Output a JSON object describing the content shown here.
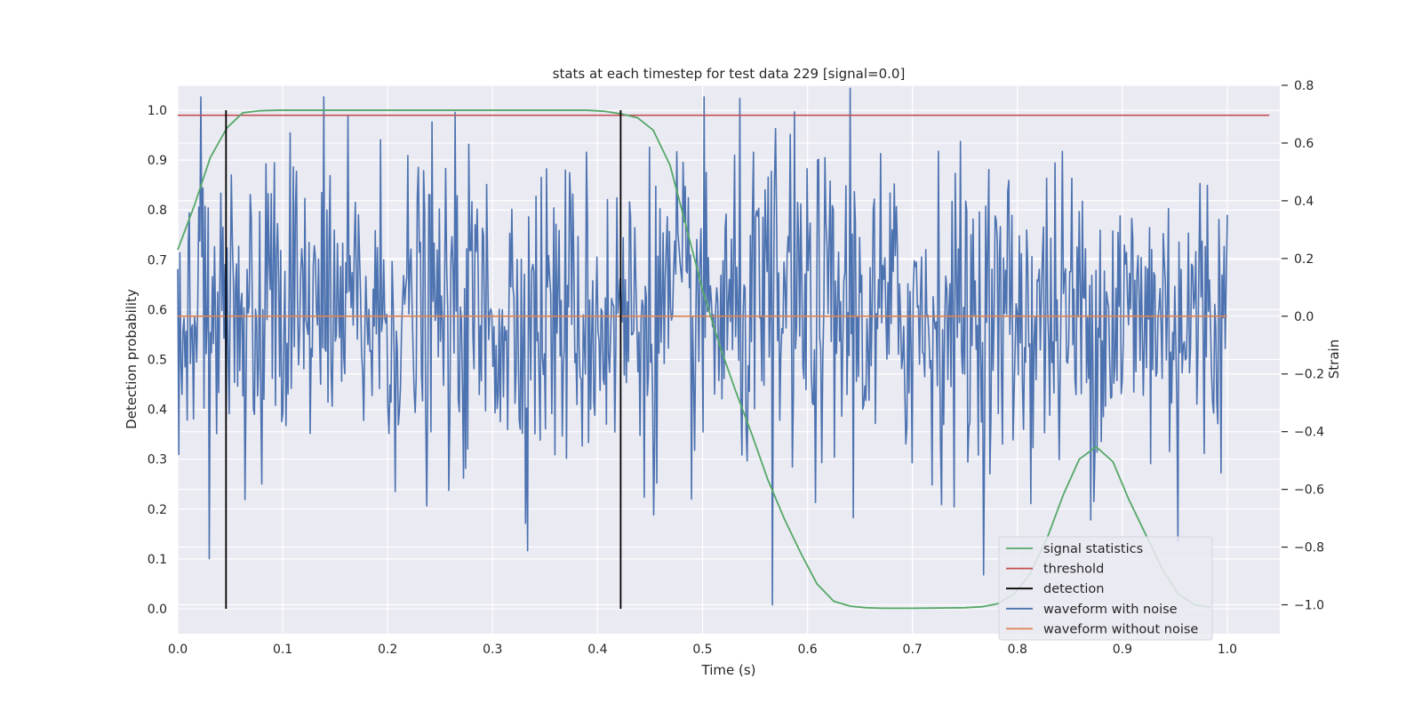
{
  "chart_data": {
    "type": "line",
    "title": "stats at each timestep for test data 229 [signal=0.0]",
    "xlabel": "Time (s)",
    "ylabel": "Detection probability",
    "y2label": "Strain",
    "xlim": [
      0.0,
      1.05
    ],
    "ylim": [
      -0.05,
      1.05
    ],
    "y2lim": [
      -1.1,
      0.8
    ],
    "xticks": [
      "0.0",
      "0.1",
      "0.2",
      "0.3",
      "0.4",
      "0.5",
      "0.6",
      "0.7",
      "0.8",
      "0.9",
      "1.0"
    ],
    "yticks": [
      "0.0",
      "0.1",
      "0.2",
      "0.3",
      "0.4",
      "0.5",
      "0.6",
      "0.7",
      "0.8",
      "0.9",
      "1.0"
    ],
    "y2ticks": [
      "−1.0",
      "−0.8",
      "−0.6",
      "−0.4",
      "−0.2",
      "0.0",
      "0.2",
      "0.4",
      "0.6",
      "0.8"
    ],
    "grid": true,
    "legend_position": "lower-right",
    "colors": {
      "signal_statistics": "#55a868",
      "threshold": "#c44e52",
      "detection": "#000000",
      "waveform_with_noise": "#4c72b0",
      "waveform_without_noise": "#dd8452",
      "plot_background": "#eaeaf2",
      "grid": "#ffffff"
    },
    "series": [
      {
        "name": "signal statistics",
        "axis": "left",
        "x": [
          0.0,
          0.016,
          0.031,
          0.047,
          0.062,
          0.078,
          0.094,
          0.109,
          0.125,
          0.2,
          0.3,
          0.39,
          0.406,
          0.422,
          0.438,
          0.453,
          0.469,
          0.484,
          0.5,
          0.516,
          0.531,
          0.547,
          0.562,
          0.578,
          0.594,
          0.609,
          0.625,
          0.641,
          0.656,
          0.672,
          0.7,
          0.75,
          0.766,
          0.781,
          0.797,
          0.812,
          0.828,
          0.844,
          0.859,
          0.875,
          0.891,
          0.906,
          0.922,
          0.938,
          0.953,
          0.969,
          0.984
        ],
        "y": [
          0.72,
          0.81,
          0.905,
          0.965,
          0.995,
          0.999,
          1.0,
          1.0,
          1.0,
          1.0,
          1.0,
          1.0,
          0.998,
          0.993,
          0.985,
          0.96,
          0.89,
          0.77,
          0.64,
          0.53,
          0.44,
          0.35,
          0.26,
          0.18,
          0.11,
          0.05,
          0.015,
          0.005,
          0.002,
          0.001,
          0.001,
          0.002,
          0.004,
          0.01,
          0.03,
          0.07,
          0.14,
          0.23,
          0.3,
          0.325,
          0.295,
          0.22,
          0.15,
          0.08,
          0.03,
          0.008,
          0.003
        ]
      },
      {
        "name": "threshold",
        "axis": "left",
        "x": [
          -0.0,
          1.04
        ],
        "y": [
          0.99,
          0.99
        ]
      },
      {
        "name": "detection",
        "axis": "left",
        "type": "vline",
        "x": [
          0.046,
          0.422
        ],
        "y_range": [
          0.0,
          1.0
        ]
      },
      {
        "name": "waveform with noise",
        "axis": "right",
        "x_range": [
          0.0,
          1.0
        ],
        "n_points": 1000,
        "noise_std": 0.27,
        "extremes": [
          {
            "x": 0.03,
            "y": -0.84
          },
          {
            "x": 0.567,
            "y": -1.0
          },
          {
            "x": 0.641,
            "y": 0.79
          },
          {
            "x": 0.57,
            "y": 0.65
          },
          {
            "x": 0.953,
            "y": -0.78
          },
          {
            "x": 0.584,
            "y": 0.63
          }
        ]
      },
      {
        "name": "waveform without noise",
        "axis": "right",
        "x": [
          0.0,
          1.0
        ],
        "y": [
          0.0,
          0.0
        ]
      }
    ],
    "legend": [
      "signal statistics",
      "threshold",
      "detection",
      "waveform with noise",
      "waveform without noise"
    ]
  }
}
